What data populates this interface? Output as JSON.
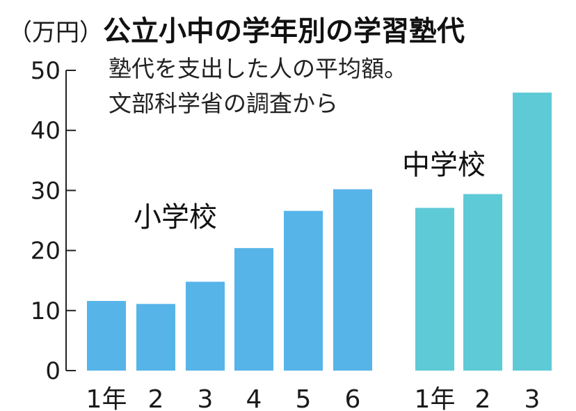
{
  "chart_data": {
    "type": "bar",
    "title": "公立小中の学年別の学習塾代",
    "subtitle_lines": [
      "塾代を支出した人の平均額。",
      "文部科学省の調査から"
    ],
    "unit": "（万円）",
    "ylim": [
      0,
      50
    ],
    "yticks": [
      0,
      10,
      20,
      30,
      40,
      50
    ],
    "grid": false,
    "groups": [
      {
        "name": "小学校",
        "color": "#56b4e9",
        "categories": [
          "1年",
          "2",
          "3",
          "4",
          "5",
          "6"
        ],
        "values": [
          11.6,
          11.1,
          14.8,
          20.4,
          26.6,
          30.2
        ]
      },
      {
        "name": "中学校",
        "color": "#5ecad6",
        "categories": [
          "1年",
          "2",
          "3"
        ],
        "values": [
          27.1,
          29.4,
          46.3
        ]
      }
    ]
  }
}
